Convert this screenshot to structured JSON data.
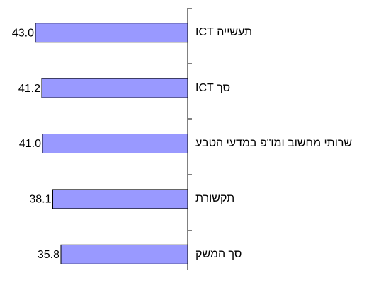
{
  "chart_data": {
    "type": "barh",
    "categories": [
      "תעשייה ICT",
      "סך ICT",
      "שרותי מחשוב ומו\"פ במדעי הטבע",
      "תקשורת",
      "סך המשק"
    ],
    "values": [
      43.0,
      41.2,
      41.0,
      38.1,
      35.8
    ],
    "value_labels": [
      "43.0",
      "41.2",
      "41.0",
      "38.1",
      "35.8"
    ],
    "color": "#9999ff",
    "xlim": [
      0,
      53
    ]
  }
}
